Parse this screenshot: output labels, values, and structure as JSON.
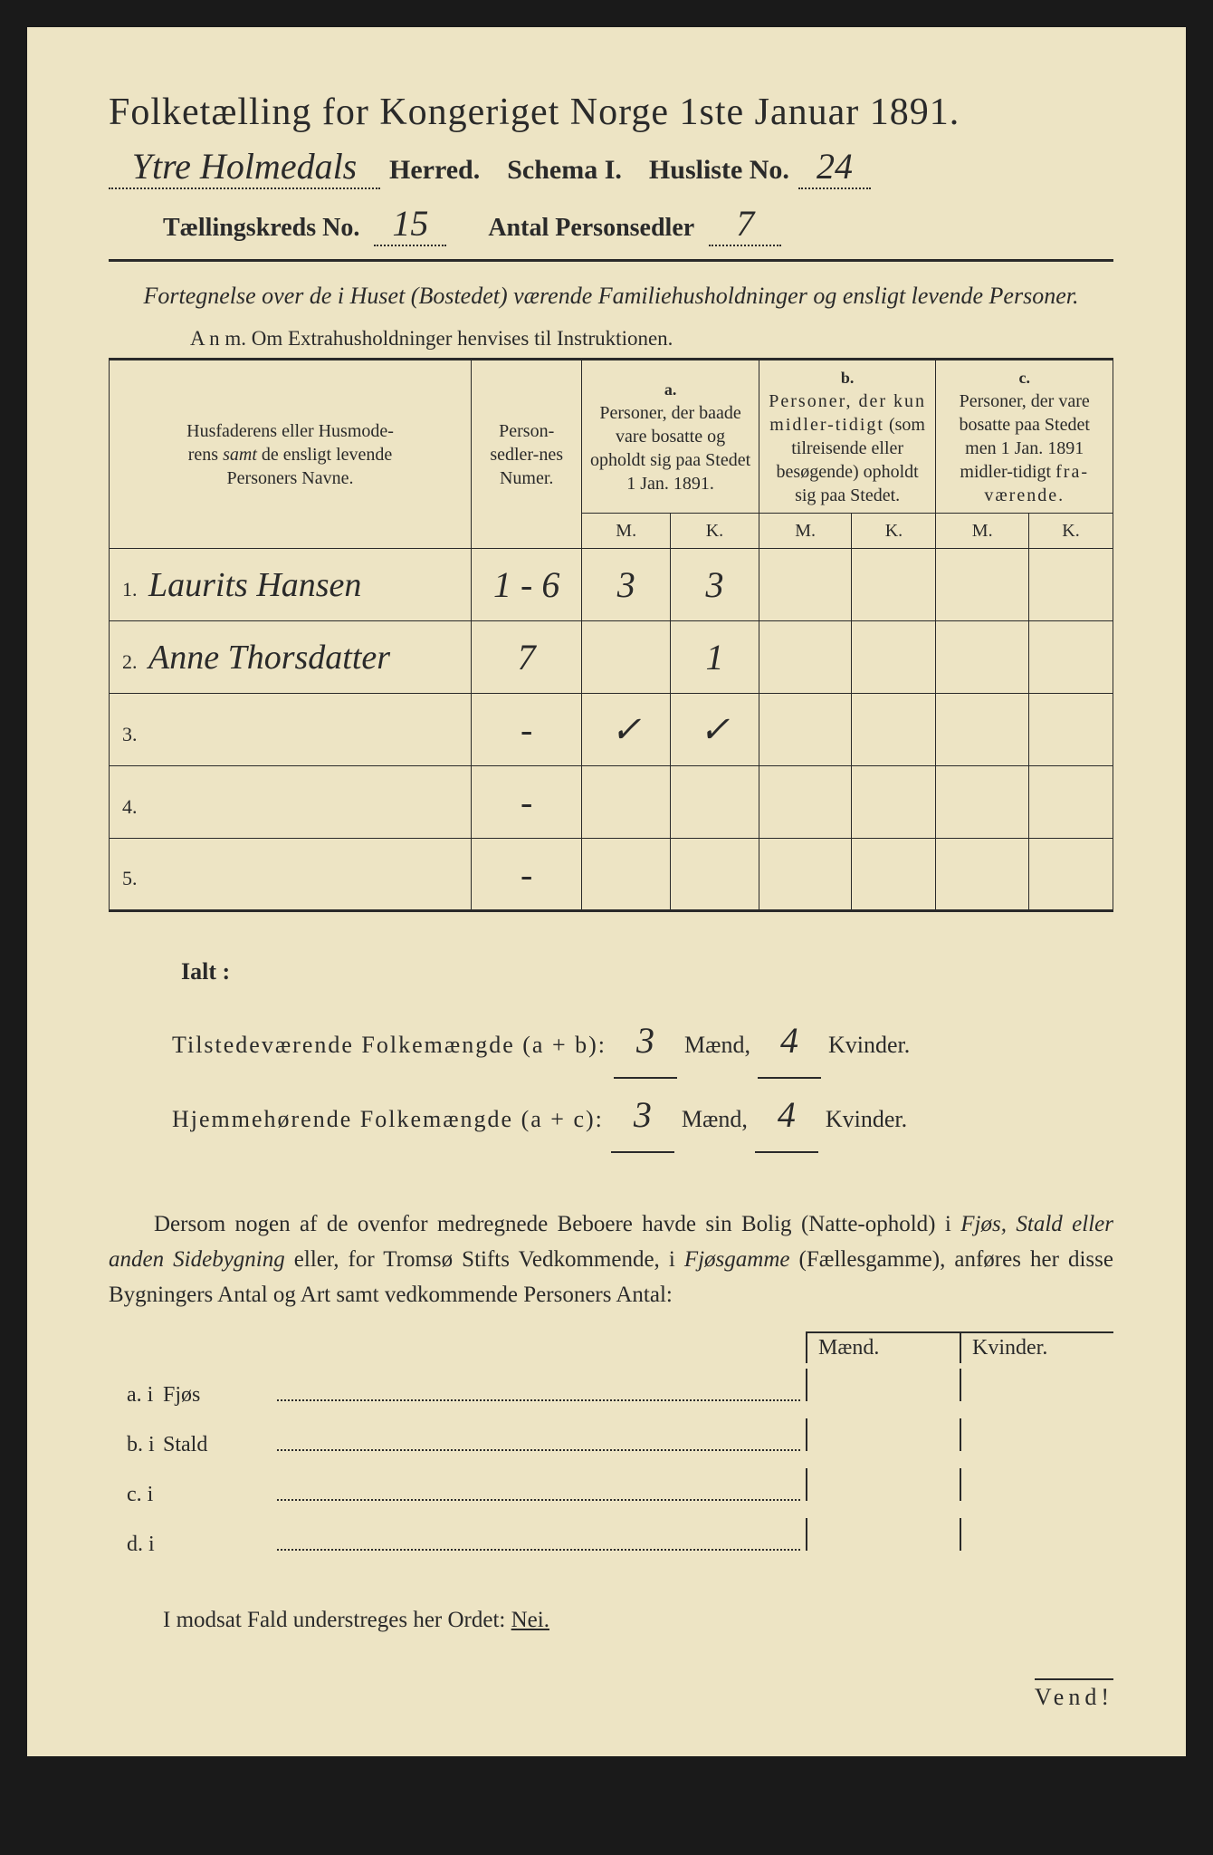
{
  "header": {
    "title": "Folketælling for Kongeriget Norge 1ste Januar 1891.",
    "herred_value": "Ytre Holmedals",
    "herred_label": "Herred.",
    "schema_label": "Schema I.",
    "husliste_label": "Husliste No.",
    "husliste_value": "24",
    "kreds_label": "Tællingskreds No.",
    "kreds_value": "15",
    "antal_label": "Antal Personsedler",
    "antal_value": "7"
  },
  "subtitle": "Fortegnelse over de i Huset (Bostedet) værende Familiehusholdninger og ensligt levende Personer.",
  "anm": "A n m.  Om Extrahusholdninger henvises til Instruktionen.",
  "columns": {
    "name": "Husfaderens eller Husmoderens samt de ensligt levende Personers Navne.",
    "num": "Person-sedler-nes Numer.",
    "a_label": "a.",
    "a": "Personer, der baade vare bosatte og opholdt sig paa Stedet 1 Jan. 1891.",
    "b_label": "b.",
    "b": "Personer, der kun midlertidigt (som tilreisende eller besøgende) opholdt sig paa Stedet.",
    "c_label": "c.",
    "c": "Personer, der vare bosatte paa Stedet men 1 Jan. 1891 midlertidigt fraværende.",
    "m": "M.",
    "k": "K."
  },
  "rows": [
    {
      "n": "1.",
      "name": "Laurits Hansen",
      "num": "1 - 6",
      "am": "3",
      "ak": "3",
      "bm": "",
      "bk": "",
      "cm": "",
      "ck": ""
    },
    {
      "n": "2.",
      "name": "Anne Thorsdatter",
      "num": "7",
      "am": "",
      "ak": "1",
      "bm": "",
      "bk": "",
      "cm": "",
      "ck": ""
    },
    {
      "n": "3.",
      "name": "",
      "num": "-",
      "am": "✓",
      "ak": "✓",
      "bm": "",
      "bk": "",
      "cm": "",
      "ck": ""
    },
    {
      "n": "4.",
      "name": "",
      "num": "-",
      "am": "",
      "ak": "",
      "bm": "",
      "bk": "",
      "cm": "",
      "ck": ""
    },
    {
      "n": "5.",
      "name": "",
      "num": "-",
      "am": "",
      "ak": "",
      "bm": "",
      "bk": "",
      "cm": "",
      "ck": ""
    }
  ],
  "ialt": {
    "label": "Ialt :",
    "line1a": "Tilstedeværende Folkemængde (a + b):",
    "line1_m": "3",
    "line1_k": "4",
    "line2a": "Hjemmehørende Folkemængde (a + c):",
    "line2_m": "3",
    "line2_k": "4",
    "maend": "Mænd,",
    "kvinder": "Kvinder."
  },
  "paragraph": "Dersom nogen af de ovenfor medregnede Beboere havde sin Bolig (Natte-ophold) i Fjøs, Stald eller anden Sidebygning eller, for Tromsø Stifts Vedkommende, i Fjøsgamme (Fællesgamme), anføres her disse Bygningers Antal og Art samt vedkommende Personers Antal:",
  "bottom_cols": {
    "m": "Mænd.",
    "k": "Kvinder."
  },
  "bottom_rows": [
    {
      "lbl": "a.  i",
      "type": "Fjøs"
    },
    {
      "lbl": "b.  i",
      "type": "Stald"
    },
    {
      "lbl": "c.  i",
      "type": ""
    },
    {
      "lbl": "d.  i",
      "type": ""
    }
  ],
  "final": {
    "text": "I modsat Fald understreges her Ordet: ",
    "nei": "Nei."
  },
  "vend": "Vend!"
}
